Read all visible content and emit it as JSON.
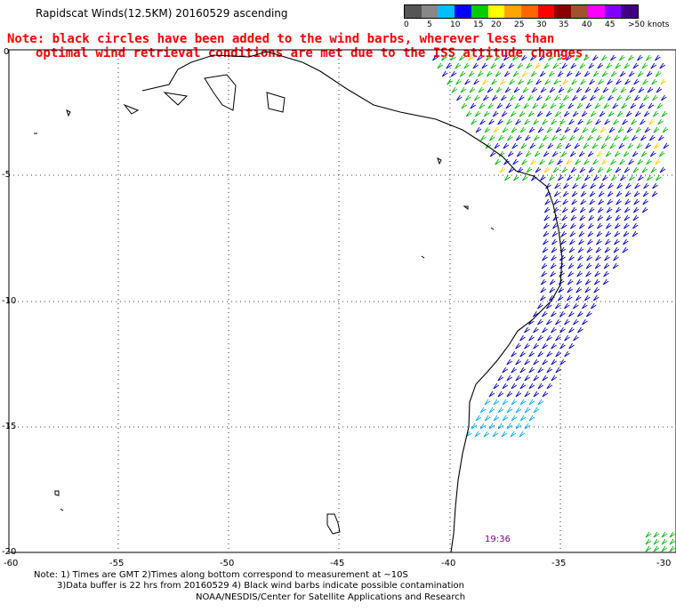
{
  "title": "Rapidscat Winds(12.5KM) 20160529 ascending",
  "note_line1": "Note: black circles have been added to the wind barbs, wherever less than",
  "note_line2": "optimal wind retrieval conditions are met due to the ISS attitude changes.",
  "legend": {
    "colors": [
      "#555555",
      "#888888",
      "#00bfff",
      "#0000ff",
      "#00cc00",
      "#ffff00",
      "#ffa500",
      "#ff6600",
      "#ff0000",
      "#8b0000",
      "#a0522d",
      "#ff00ff",
      "#8000ff",
      "#400080"
    ],
    "labels": [
      "0",
      "5",
      "10",
      "15",
      "20",
      "25",
      "30",
      "35",
      "40",
      "45",
      ">50 knots"
    ]
  },
  "y_labels": [
    "0",
    "-5",
    "-10",
    "-15",
    "-20"
  ],
  "x_labels": [
    "-60",
    "-55",
    "-50",
    "-45",
    "-40",
    "-35",
    "-30"
  ],
  "timestamp": "19:36",
  "footnote_line1": "Note: 1) Times are GMT 2)Times along bottom correspond to measurement at ~10S",
  "footnote_line2": "3)Data buffer is 22 hrs from 20160529 4) Black wind barbs indicate possible contamination",
  "credit": "NOAA/NESDIS/Center for Satellite Applications and Research"
}
